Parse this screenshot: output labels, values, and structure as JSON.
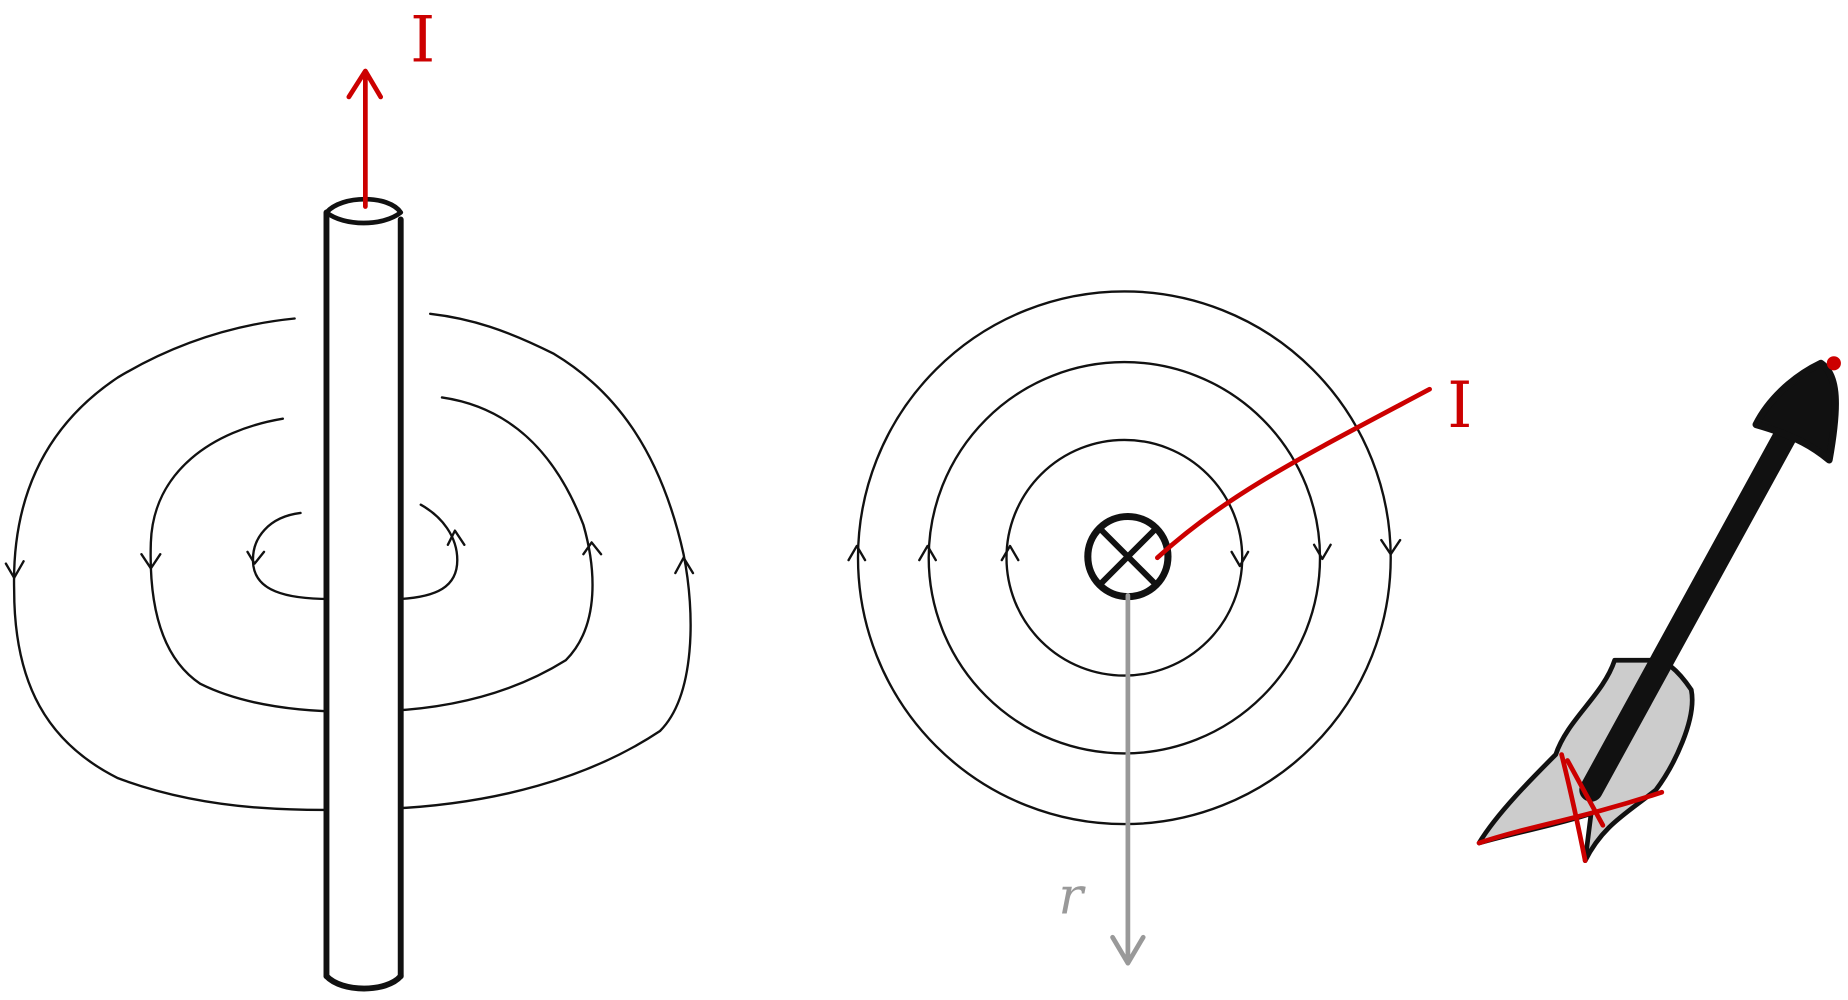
{
  "labels": {
    "current_wire": "I",
    "current_cross_section": "I",
    "radius": "r"
  }
}
